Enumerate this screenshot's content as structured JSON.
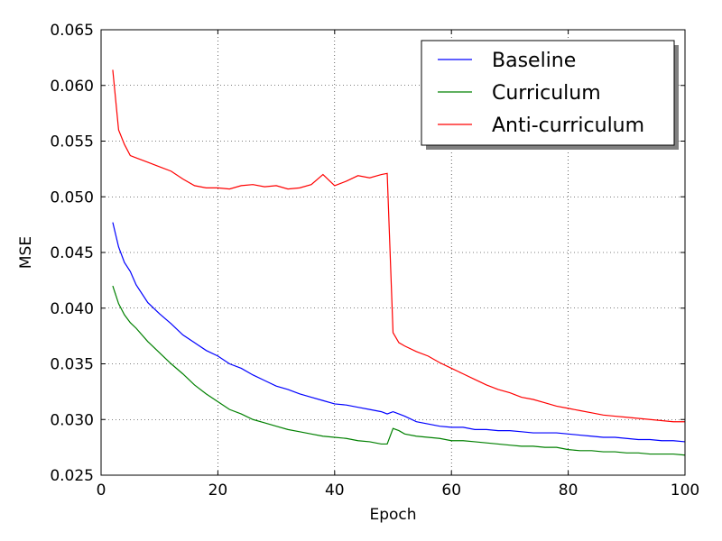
{
  "chart_data": {
    "type": "line",
    "x_label": "Epoch",
    "y_label": "MSE",
    "x": [
      2,
      3,
      4,
      5,
      6,
      8,
      10,
      12,
      14,
      16,
      18,
      20,
      22,
      24,
      26,
      28,
      30,
      32,
      34,
      36,
      38,
      40,
      42,
      44,
      46,
      48,
      49,
      50,
      51,
      52,
      54,
      56,
      58,
      60,
      62,
      64,
      66,
      68,
      70,
      72,
      74,
      76,
      78,
      80,
      82,
      84,
      86,
      88,
      90,
      92,
      94,
      96,
      98,
      100
    ],
    "series": [
      {
        "name": "Baseline",
        "color": "#0000ff",
        "values": [
          0.0477,
          0.0455,
          0.0441,
          0.0433,
          0.0421,
          0.0405,
          0.0395,
          0.0386,
          0.0376,
          0.0369,
          0.0362,
          0.0357,
          0.035,
          0.0346,
          0.034,
          0.0335,
          0.033,
          0.0327,
          0.0323,
          0.032,
          0.0317,
          0.0314,
          0.0313,
          0.0311,
          0.0309,
          0.0307,
          0.0305,
          0.0307,
          0.0305,
          0.0303,
          0.0298,
          0.0296,
          0.0294,
          0.0293,
          0.0293,
          0.0291,
          0.0291,
          0.029,
          0.029,
          0.0289,
          0.0288,
          0.0288,
          0.0288,
          0.0287,
          0.0286,
          0.0285,
          0.0284,
          0.0284,
          0.0283,
          0.0282,
          0.0282,
          0.0281,
          0.0281,
          0.028
        ]
      },
      {
        "name": "Curriculum",
        "color": "#008000",
        "values": [
          0.042,
          0.0404,
          0.0394,
          0.0387,
          0.0382,
          0.037,
          0.036,
          0.035,
          0.0341,
          0.0331,
          0.0323,
          0.0316,
          0.0309,
          0.0305,
          0.03,
          0.0297,
          0.0294,
          0.0291,
          0.0289,
          0.0287,
          0.0285,
          0.0284,
          0.0283,
          0.0281,
          0.028,
          0.0278,
          0.0278,
          0.0292,
          0.029,
          0.0287,
          0.0285,
          0.0284,
          0.0283,
          0.0281,
          0.0281,
          0.028,
          0.0279,
          0.0278,
          0.0277,
          0.0276,
          0.0276,
          0.0275,
          0.0275,
          0.0273,
          0.0272,
          0.0272,
          0.0271,
          0.0271,
          0.027,
          0.027,
          0.0269,
          0.0269,
          0.0269,
          0.0268
        ]
      },
      {
        "name": "Anti-curriculum",
        "color": "#ff0000",
        "values": [
          0.0614,
          0.056,
          0.0547,
          0.0537,
          0.0535,
          0.0531,
          0.0527,
          0.0523,
          0.0516,
          0.051,
          0.0508,
          0.0508,
          0.0507,
          0.051,
          0.0511,
          0.0509,
          0.051,
          0.0507,
          0.0508,
          0.0511,
          0.052,
          0.051,
          0.0514,
          0.0519,
          0.0517,
          0.052,
          0.0521,
          0.0378,
          0.0369,
          0.0366,
          0.0361,
          0.0357,
          0.0351,
          0.0346,
          0.0341,
          0.0336,
          0.0331,
          0.0327,
          0.0324,
          0.032,
          0.0318,
          0.0315,
          0.0312,
          0.031,
          0.0308,
          0.0306,
          0.0304,
          0.0303,
          0.0302,
          0.0301,
          0.03,
          0.0299,
          0.0298,
          0.0298
        ]
      }
    ],
    "xlim": [
      0,
      100
    ],
    "xticks": [
      0,
      20,
      40,
      60,
      80,
      100
    ],
    "ylim": [
      0.025,
      0.065
    ],
    "yticks": [
      0.025,
      {
        "value": 0.03,
        "label": "0.030"
      },
      0.035,
      {
        "value": 0.04,
        "label": "0.040"
      },
      0.045,
      {
        "value": 0.05,
        "label": "0.050"
      },
      0.055,
      {
        "value": 0.06,
        "label": "0.060"
      },
      0.065
    ],
    "grid": true,
    "legend": "upper-right"
  }
}
